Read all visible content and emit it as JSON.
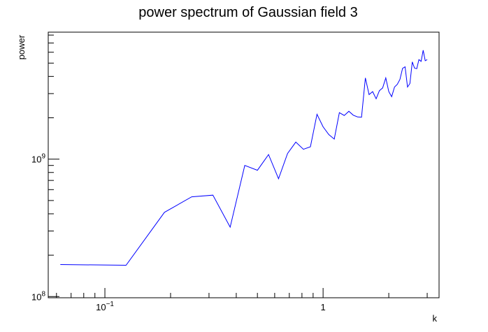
{
  "chart_data": {
    "type": "line",
    "title": "power spectrum of Gaussian field 3",
    "xlabel": "k",
    "ylabel": "power",
    "xscale": "log",
    "yscale": "log",
    "xlim": [
      0.055,
      3.4
    ],
    "ylim": [
      98000000,
      8400000000
    ],
    "grid": false,
    "line_color": "#0000ff",
    "x_ticks": [
      {
        "value": 0.1,
        "base": "10",
        "exp": "−1"
      },
      {
        "value": 1,
        "label": "1"
      }
    ],
    "y_ticks": [
      {
        "value": 100000000,
        "base": "10",
        "exp": "8"
      },
      {
        "value": 1000000000,
        "base": "10",
        "exp": "9"
      }
    ],
    "series": [
      {
        "x": [
          0.0625,
          0.125,
          0.1875,
          0.25,
          0.3125,
          0.375,
          0.4375,
          0.5,
          0.5625,
          0.625,
          0.6875,
          0.75,
          0.8125,
          0.875,
          0.9375,
          1.0,
          1.0625,
          1.125,
          1.1875,
          1.25,
          1.3125,
          1.375,
          1.4375,
          1.5,
          1.5625,
          1.625,
          1.6875,
          1.75,
          1.8125,
          1.875,
          1.9375,
          2.0,
          2.0625,
          2.125,
          2.1875,
          2.25,
          2.3125,
          2.375,
          2.4375,
          2.5,
          2.5625,
          2.625,
          2.6875,
          2.75,
          2.8125,
          2.875,
          2.9375,
          3.0
        ],
        "y": [
          171000000,
          169000000,
          410000000,
          532000000,
          547000000,
          320000000,
          900000000,
          830000000,
          1080000000,
          720000000,
          1100000000,
          1330000000,
          1180000000,
          1230000000,
          2120000000,
          1720000000,
          1510000000,
          1400000000,
          2180000000,
          2080000000,
          2230000000,
          2090000000,
          2030000000,
          2020000000,
          3900000000,
          2950000000,
          3100000000,
          2750000000,
          3150000000,
          3300000000,
          3900000000,
          3100000000,
          2850000000,
          3350000000,
          3500000000,
          3800000000,
          4580000000,
          4700000000,
          3350000000,
          3550000000,
          5100000000,
          4600000000,
          4550000000,
          5300000000,
          5150000000,
          6200000000,
          5200000000,
          5300000000
        ]
      }
    ]
  }
}
